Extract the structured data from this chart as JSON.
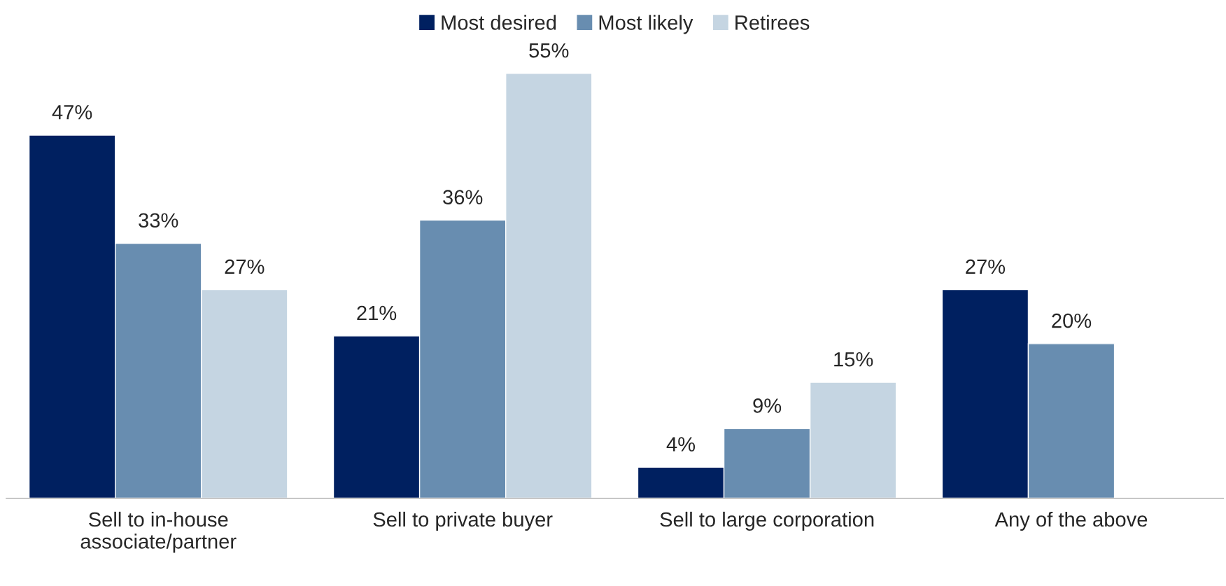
{
  "chart_data": {
    "type": "bar",
    "categories": [
      "Sell to in-house\nassociate/partner",
      "Sell to private buyer",
      "Sell to large corporation",
      "Any of the above"
    ],
    "series": [
      {
        "name": "Most desired",
        "color": "#002060",
        "values": [
          47,
          21,
          4,
          27
        ],
        "value_labels": [
          "47%",
          "21%",
          "4%",
          "27%"
        ]
      },
      {
        "name": "Most likely",
        "color": "#688db0",
        "values": [
          33,
          36,
          9,
          20
        ],
        "value_labels": [
          "33%",
          "36%",
          "9%",
          "20%"
        ]
      },
      {
        "name": "Retirees",
        "color": "#c5d5e2",
        "values": [
          27,
          55,
          15,
          null
        ],
        "value_labels": [
          "27%",
          "55%",
          "15%",
          null
        ]
      }
    ],
    "legend": "top",
    "tick_labels": "x"
  }
}
